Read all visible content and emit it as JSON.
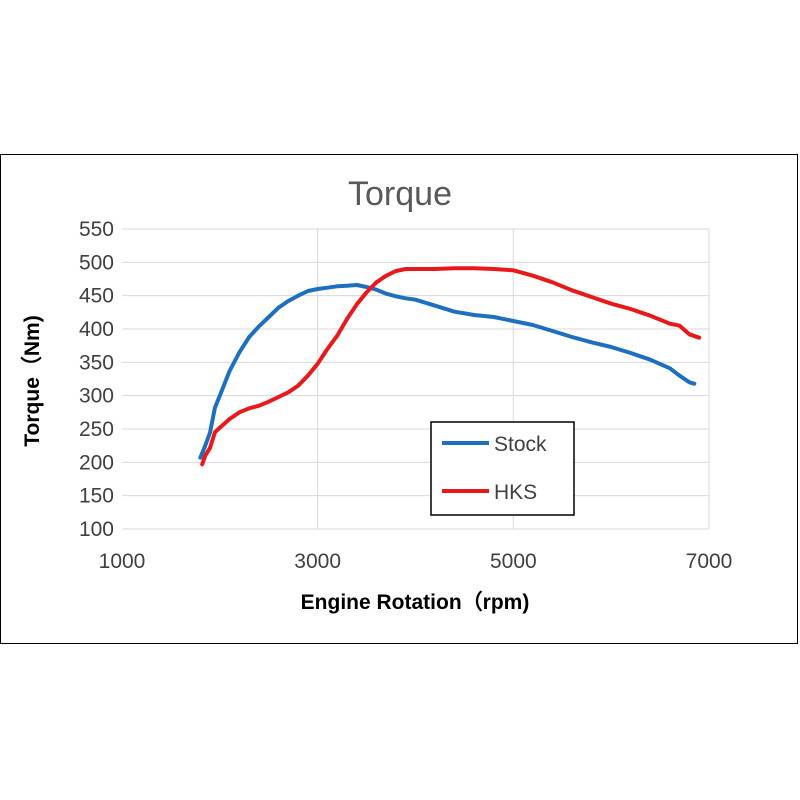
{
  "chart_data": {
    "type": "line",
    "title": "Torque",
    "xlabel": "Engine Rotation（rpm)",
    "ylabel": "Torque（Nm)",
    "xlim": [
      1000,
      7000
    ],
    "ylim": [
      100,
      550
    ],
    "xticks": [
      1000,
      3000,
      5000,
      7000
    ],
    "yticks": [
      100,
      150,
      200,
      250,
      300,
      350,
      400,
      450,
      500,
      550
    ],
    "grid": true,
    "legend_position": "bottom-center",
    "series": [
      {
        "name": "Stock",
        "color": "#1f6fbf",
        "x": [
          1800,
          1850,
          1900,
          1950,
          2000,
          2100,
          2200,
          2300,
          2400,
          2500,
          2600,
          2700,
          2800,
          2900,
          3000,
          3100,
          3200,
          3300,
          3400,
          3500,
          3600,
          3700,
          3800,
          3900,
          4000,
          4200,
          4400,
          4600,
          4800,
          5000,
          5200,
          5400,
          5600,
          5800,
          6000,
          6200,
          6400,
          6600,
          6700,
          6800,
          6850
        ],
        "y": [
          207,
          225,
          245,
          282,
          300,
          337,
          365,
          388,
          404,
          418,
          432,
          442,
          450,
          457,
          460,
          462,
          464,
          465,
          466,
          463,
          459,
          453,
          449,
          446,
          444,
          435,
          426,
          421,
          418,
          412,
          406,
          397,
          388,
          380,
          373,
          364,
          354,
          341,
          330,
          320,
          318
        ]
      },
      {
        "name": "HKS",
        "color": "#e8191b",
        "x": [
          1820,
          1850,
          1900,
          1950,
          2000,
          2100,
          2200,
          2300,
          2400,
          2500,
          2600,
          2700,
          2800,
          2900,
          3000,
          3100,
          3200,
          3300,
          3400,
          3500,
          3600,
          3700,
          3800,
          3900,
          4000,
          4200,
          4400,
          4600,
          4800,
          5000,
          5200,
          5400,
          5600,
          5800,
          6000,
          6200,
          6400,
          6600,
          6700,
          6800,
          6900
        ],
        "y": [
          197,
          210,
          222,
          245,
          252,
          265,
          275,
          281,
          285,
          291,
          298,
          305,
          315,
          330,
          348,
          370,
          390,
          415,
          437,
          455,
          470,
          480,
          487,
          490,
          490,
          490,
          491,
          491,
          490,
          488,
          480,
          470,
          458,
          448,
          438,
          430,
          420,
          408,
          405,
          392,
          387
        ]
      }
    ]
  }
}
